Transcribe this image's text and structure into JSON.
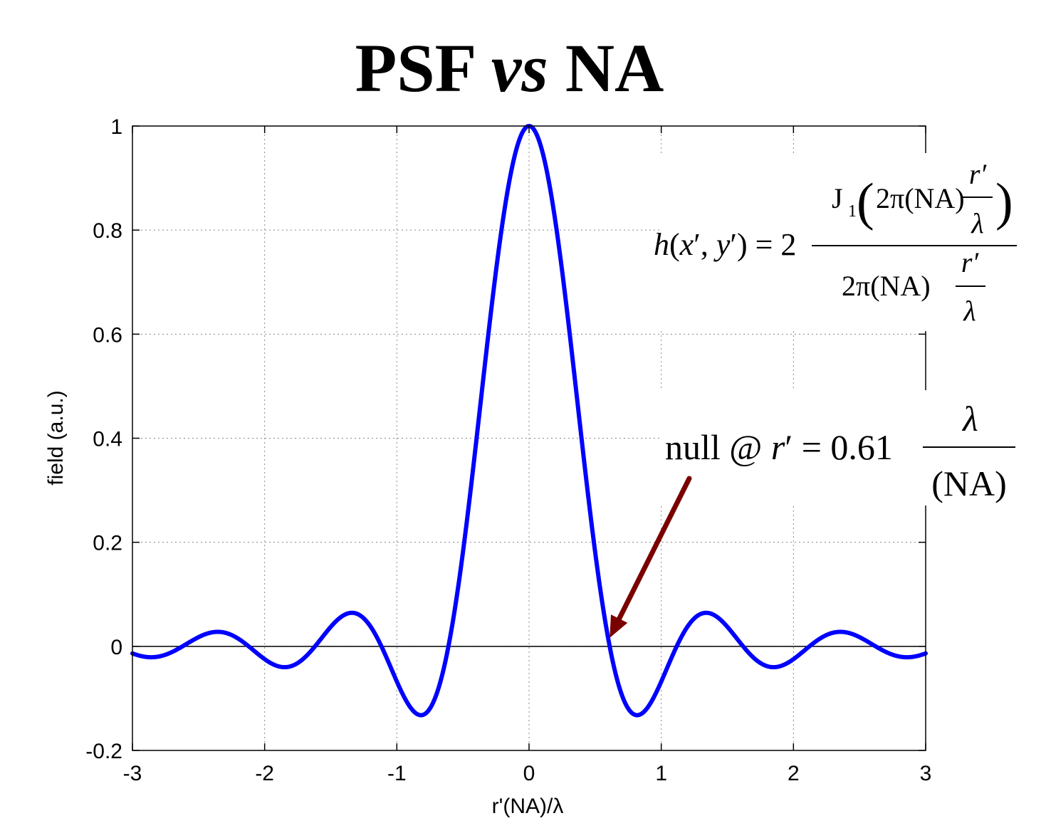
{
  "chart_data": {
    "type": "line",
    "title": "PSF vs NA",
    "title_parts": [
      "PSF ",
      "vs",
      " NA"
    ],
    "xlabel": "r'(NA)/λ",
    "ylabel": "field (a.u.)",
    "xlim": [
      -3,
      3
    ],
    "ylim": [
      -0.2,
      1
    ],
    "xticks": [
      -3,
      -2,
      -1,
      0,
      1,
      2,
      3
    ],
    "xtick_labels": [
      "-3",
      "-2",
      "-1",
      "0",
      "1",
      "2",
      "3"
    ],
    "yticks": [
      -0.2,
      0,
      0.2,
      0.4,
      0.6,
      0.8,
      1
    ],
    "ytick_labels": [
      "-0.2",
      "0",
      "0.2",
      "0.4",
      "0.6",
      "0.8",
      "1"
    ],
    "grid": true,
    "series": [
      {
        "color": "#0000ff",
        "function": "2 J1(2πx)/(2πx)",
        "x": [
          -3.0,
          -2.5,
          -2.2,
          -2.0,
          -1.85,
          -1.64,
          -1.34,
          -1.12,
          -1.0,
          -0.81,
          -0.61,
          -0.5,
          -0.3,
          -0.15,
          0.0,
          0.15,
          0.3,
          0.5,
          0.61,
          0.81,
          1.0,
          1.12,
          1.34,
          1.64,
          1.85,
          2.0,
          2.2,
          2.5,
          3.0
        ],
        "y": [
          -0.015,
          0.012,
          0.021,
          -0.02,
          -0.04,
          0.0,
          0.065,
          0.0,
          -0.045,
          -0.132,
          0.0,
          0.181,
          0.612,
          0.894,
          1.0,
          0.894,
          0.612,
          0.181,
          0.0,
          -0.132,
          -0.045,
          0.0,
          0.065,
          0.0,
          -0.04,
          -0.02,
          0.021,
          0.012,
          -0.015
        ]
      }
    ],
    "reference_line": {
      "y": 0,
      "color": "#000000"
    },
    "annotations": {
      "formula": {
        "lhs": "h(x′, y′) = 2",
        "numerator_fn": "J",
        "numerator_sub": "1",
        "numerator_arg": "2π(NA)",
        "denominator": "2π(NA)",
        "frac_num": "r′",
        "frac_den": "λ",
        "paren_open": "(",
        "paren_close": ")"
      },
      "null_label": {
        "text": "null @ r′ = 0.61",
        "frac_num": "λ",
        "frac_den": "(NA)",
        "arrow_target_x": 0.61,
        "arrow_color": "#7a0000"
      }
    }
  }
}
